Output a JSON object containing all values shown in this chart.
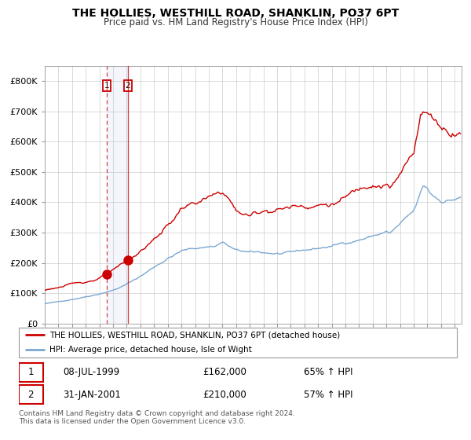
{
  "title": "THE HOLLIES, WESTHILL ROAD, SHANKLIN, PO37 6PT",
  "subtitle": "Price paid vs. HM Land Registry's House Price Index (HPI)",
  "legend_line1": "THE HOLLIES, WESTHILL ROAD, SHANKLIN, PO37 6PT (detached house)",
  "legend_line2": "HPI: Average price, detached house, Isle of Wight",
  "transaction1_date": "08-JUL-1999",
  "transaction1_price": "£162,000",
  "transaction1_hpi": "65% ↑ HPI",
  "transaction2_date": "31-JAN-2001",
  "transaction2_price": "£210,000",
  "transaction2_hpi": "57% ↑ HPI",
  "footer": "Contains HM Land Registry data © Crown copyright and database right 2024.\nThis data is licensed under the Open Government Licence v3.0.",
  "red_color": "#cc0000",
  "blue_color": "#7aa8d2",
  "vline1_x": 1999.54,
  "vline2_x": 2001.08,
  "marker1_x": 1999.54,
  "marker1_y": 162000,
  "marker2_x": 2001.08,
  "marker2_y": 210000,
  "ylim": [
    0,
    850000
  ],
  "xlim_left": 1995.0,
  "xlim_right": 2025.5,
  "xticks": [
    1995,
    1996,
    1997,
    1998,
    1999,
    2000,
    2001,
    2002,
    2003,
    2004,
    2005,
    2006,
    2007,
    2008,
    2009,
    2010,
    2011,
    2012,
    2013,
    2014,
    2015,
    2016,
    2017,
    2018,
    2019,
    2020,
    2021,
    2022,
    2023,
    2024,
    2025
  ],
  "yticks": [
    0,
    100000,
    200000,
    300000,
    400000,
    500000,
    600000,
    700000,
    800000
  ],
  "ytick_labels": [
    "£0",
    "£100K",
    "£200K",
    "£300K",
    "£400K",
    "£500K",
    "£600K",
    "£700K",
    "£800K"
  ]
}
